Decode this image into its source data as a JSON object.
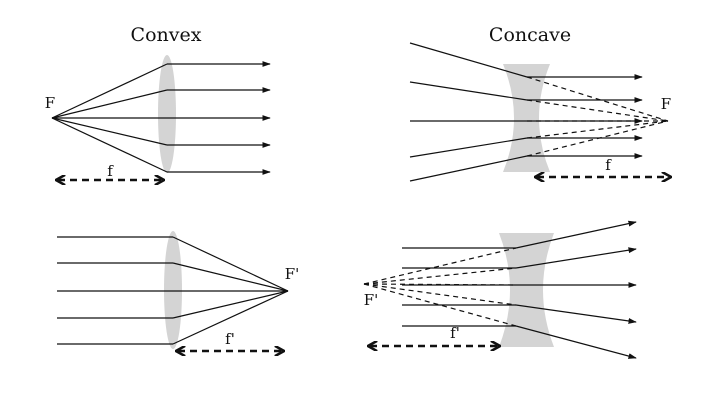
{
  "titles": {
    "convex": "Convex",
    "concave": "Concave"
  },
  "labels": {
    "convex_focus_top": "F",
    "convex_length_top": "f",
    "concave_focus_top": "F",
    "concave_length_top": "f",
    "convex_focus_bottom": "F'",
    "convex_length_bottom": "f'",
    "concave_focus_bottom": "F'",
    "concave_length_bottom": "f'"
  },
  "colors": {
    "lens": "#d4d4d4",
    "ray": "#111111",
    "background": "#ffffff"
  }
}
